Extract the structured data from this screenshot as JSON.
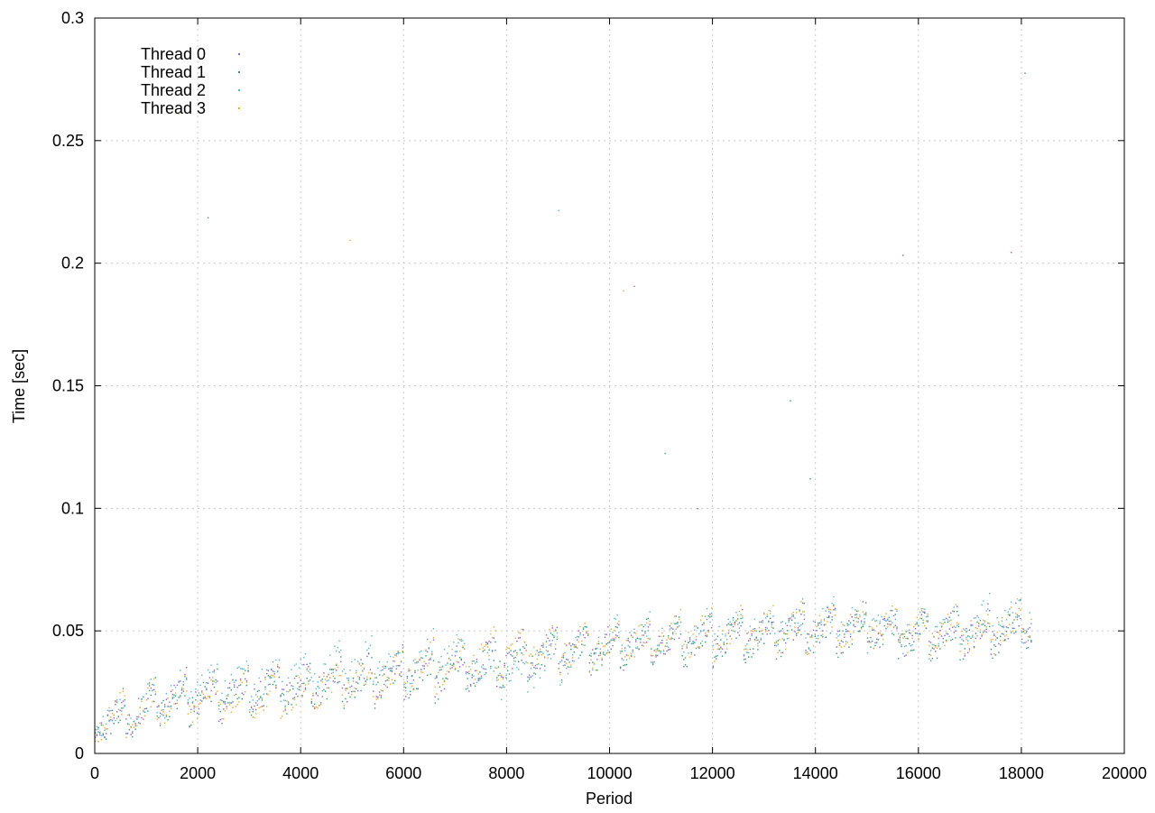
{
  "chart_data": {
    "type": "scatter",
    "title": "",
    "xlabel": "Period",
    "ylabel": "Time [sec]",
    "xlim": [
      0,
      20000
    ],
    "ylim": [
      0,
      0.3
    ],
    "x_ticks": [
      "0",
      "2000",
      "4000",
      "6000",
      "8000",
      "10000",
      "12000",
      "14000",
      "16000",
      "18000",
      "20000"
    ],
    "y_ticks": [
      "0",
      "0.05",
      "0.1",
      "0.15",
      "0.2",
      "0.25",
      "0.3"
    ],
    "grid": true,
    "legend_position": "top-left",
    "point_count_per_series": 18200,
    "series": [
      {
        "name": "Thread 0",
        "color": "#8e5fc2",
        "x": [
          0,
          1000,
          2000,
          3000,
          4000,
          5000,
          6000,
          7000,
          8000,
          9000,
          10000,
          11000,
          12000,
          13000,
          14000,
          15000,
          16000,
          17000,
          18000
        ],
        "y": [
          0.012,
          0.02,
          0.024,
          0.026,
          0.028,
          0.031,
          0.033,
          0.036,
          0.039,
          0.042,
          0.045,
          0.047,
          0.048,
          0.05,
          0.051,
          0.052,
          0.048,
          0.05,
          0.052
        ]
      },
      {
        "name": "Thread 1",
        "color": "#2e9b6b",
        "x": [
          0,
          1000,
          2000,
          3000,
          4000,
          5000,
          6000,
          7000,
          8000,
          9000,
          10000,
          11000,
          12000,
          13000,
          14000,
          15000,
          16000,
          17000,
          18000
        ],
        "y": [
          0.012,
          0.019,
          0.023,
          0.025,
          0.027,
          0.03,
          0.032,
          0.035,
          0.038,
          0.041,
          0.044,
          0.046,
          0.047,
          0.049,
          0.05,
          0.051,
          0.047,
          0.049,
          0.051
        ]
      },
      {
        "name": "Thread 2",
        "color": "#55b4d6",
        "x": [
          0,
          1000,
          2000,
          3000,
          4000,
          5000,
          6000,
          7000,
          8000,
          9000,
          10000,
          11000,
          12000,
          13000,
          14000,
          15000,
          16000,
          17000,
          18000
        ],
        "y": [
          0.013,
          0.021,
          0.027,
          0.03,
          0.032,
          0.036,
          0.038,
          0.04,
          0.032,
          0.04,
          0.046,
          0.048,
          0.05,
          0.052,
          0.053,
          0.054,
          0.05,
          0.052,
          0.056
        ]
      },
      {
        "name": "Thread 3",
        "color": "#e6a93a",
        "x": [
          0,
          1000,
          2000,
          3000,
          4000,
          5000,
          6000,
          7000,
          8000,
          9000,
          10000,
          11000,
          12000,
          13000,
          14000,
          15000,
          16000,
          17000,
          18000
        ],
        "y": [
          0.012,
          0.02,
          0.022,
          0.024,
          0.026,
          0.03,
          0.034,
          0.038,
          0.041,
          0.043,
          0.045,
          0.047,
          0.049,
          0.05,
          0.052,
          0.053,
          0.049,
          0.051,
          0.053
        ]
      }
    ]
  }
}
